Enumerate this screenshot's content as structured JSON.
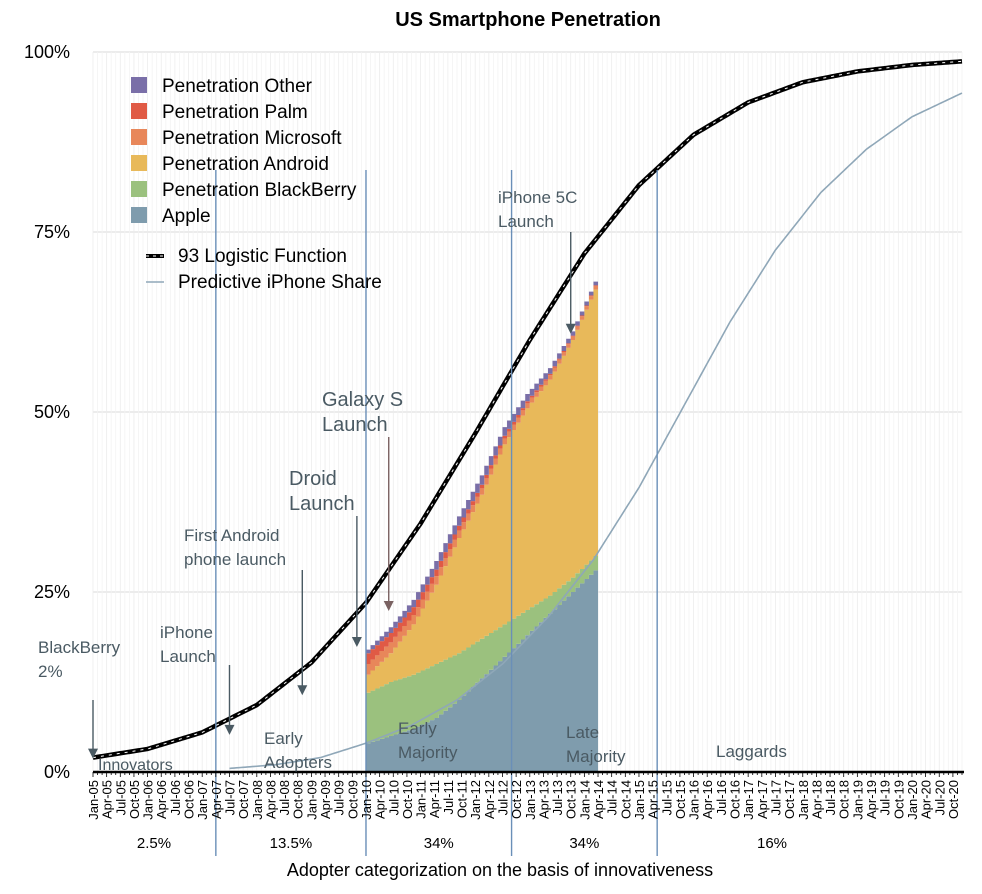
{
  "chart_data": {
    "type": "area",
    "title": "US Smartphone Penetration",
    "xlabel": "Adopter categorization on the basis of innovativeness",
    "ylabel": "",
    "ylim": [
      0,
      100
    ],
    "y_ticks": [
      "0%",
      "25%",
      "50%",
      "75%",
      "100%"
    ],
    "x_tick_labels": [
      "Jan-05",
      "Apr-05",
      "Jul-05",
      "Oct-05",
      "Jan-06",
      "Apr-06",
      "Jul-06",
      "Oct-06",
      "Jan-07",
      "Apr-07",
      "Jul-07",
      "Oct-07",
      "Jan-08",
      "Apr-08",
      "Jul-08",
      "Oct-08",
      "Jan-09",
      "Apr-09",
      "Jul-09",
      "Oct-09",
      "Jan-10",
      "Apr-10",
      "Jul-10",
      "Oct-10",
      "Jan-11",
      "Apr-11",
      "Jul-11",
      "Oct-11",
      "Jan-12",
      "Apr-12",
      "Jul-12",
      "Oct-12",
      "Jan-13",
      "Apr-13",
      "Jul-13",
      "Oct-13",
      "Jan-14",
      "Apr-14",
      "Jul-14",
      "Oct-14",
      "Jan-15",
      "Apr-15",
      "Jul-15",
      "Oct-15",
      "Jan-16",
      "Apr-16",
      "Jul-16",
      "Oct-16",
      "Jan-17",
      "Apr-17",
      "Jul-17",
      "Oct-17",
      "Jan-18",
      "Apr-18",
      "Jul-18",
      "Oct-18",
      "Jan-19",
      "Apr-19",
      "Jul-19",
      "Oct-19",
      "Jan-20",
      "Apr-20",
      "Jul-20",
      "Oct-20"
    ],
    "x_range_months": [
      0,
      191
    ],
    "area_x_months": [
      60,
      65,
      70,
      75,
      80,
      85,
      90,
      95,
      100,
      105,
      110
    ],
    "series": [
      {
        "name": "Apple",
        "color": "#7f9cad",
        "values": [
          4,
          5,
          6,
          7.5,
          10,
          13,
          16,
          19,
          22,
          25,
          28
        ]
      },
      {
        "name": "Penetration BlackBerry",
        "color": "#9bc17e",
        "values": [
          7,
          7.5,
          7.5,
          7.5,
          6.5,
          5.5,
          4.5,
          3.5,
          2.5,
          2,
          2
        ]
      },
      {
        "name": "Penetration Android",
        "color": "#e8b95a",
        "values": [
          2.5,
          4,
          7,
          11,
          16,
          20,
          25,
          28,
          30,
          33,
          37
        ]
      },
      {
        "name": "Penetration Microsoft",
        "color": "#e8875a",
        "values": [
          1.5,
          1.5,
          1.3,
          1.2,
          1,
          0.9,
          0.8,
          0.7,
          0.6,
          0.5,
          0.5
        ]
      },
      {
        "name": "Penetration Palm",
        "color": "#e05a45",
        "values": [
          1.5,
          1.3,
          1.1,
          0.9,
          0.7,
          0.5,
          0.4,
          0.3,
          0.2,
          0.1,
          0.1
        ]
      },
      {
        "name": "Penetration Other",
        "color": "#7a6fa8",
        "values": [
          0.5,
          0.8,
          1,
          1.2,
          1.3,
          1.3,
          1.2,
          1,
          0.8,
          0.6,
          0.5
        ]
      }
    ],
    "legend_order": [
      "Penetration Other",
      "Penetration Palm",
      "Penetration Microsoft",
      "Penetration Android",
      "Penetration BlackBerry",
      "Apple"
    ],
    "curves": [
      {
        "name": "93 Logistic Function",
        "color": "#000000",
        "style": "dashed-thick",
        "x_months": [
          0,
          12,
          24,
          36,
          48,
          60,
          72,
          84,
          96,
          108,
          120,
          132,
          144,
          156,
          168,
          180,
          191
        ],
        "values": [
          2,
          3.2,
          5.5,
          9.3,
          15.2,
          23.5,
          34.5,
          47,
          60,
          72,
          81.5,
          88.5,
          93,
          95.8,
          97.3,
          98.2,
          98.7
        ]
      },
      {
        "name": "Predictive iPhone Share",
        "color": "#8fa7b8",
        "style": "thin",
        "x_months": [
          30,
          40,
          50,
          60,
          70,
          80,
          90,
          100,
          110,
          120,
          130,
          140,
          150,
          160,
          170,
          180,
          191
        ],
        "values": [
          0.5,
          1,
          2,
          4,
          6.5,
          10,
          15,
          21.5,
          29.5,
          39.5,
          51,
          62.5,
          72.5,
          80.5,
          86.5,
          91,
          94.3
        ]
      }
    ],
    "annotations": [
      {
        "name": "annotation-blackberry",
        "lines": [
          "BlackBerry",
          "2%"
        ],
        "arrow_x_month": 0,
        "arrow_tip_y": 2
      },
      {
        "name": "annotation-iphone-launch",
        "lines": [
          "iPhone",
          "Launch"
        ],
        "arrow_x_month": 30,
        "arrow_tip_y": 5.3
      },
      {
        "name": "annotation-first-android",
        "lines": [
          "First Android",
          "phone launch"
        ],
        "arrow_x_month": 46,
        "arrow_tip_y": 10.8
      },
      {
        "name": "annotation-droid-launch",
        "lines": [
          "Droid",
          "Launch"
        ],
        "arrow_x_month": 58,
        "arrow_tip_y": 17.5
      },
      {
        "name": "annotation-galaxy-s-launch",
        "lines": [
          "Galaxy S",
          "Launch"
        ],
        "arrow_x_month": 65,
        "arrow_tip_y": 22.5
      },
      {
        "name": "annotation-iphone-5c-launch",
        "lines": [
          "iPhone 5C",
          "Launch"
        ],
        "arrow_x_month": 105,
        "arrow_tip_y": 61
      }
    ],
    "adopter_categories": [
      {
        "name": "Innovators",
        "percent": "2.5%"
      },
      {
        "name": "Early Adopters",
        "percent": "13.5%"
      },
      {
        "name": "Early Majority",
        "percent": "34%"
      },
      {
        "name": "Late Majority",
        "percent": "34%"
      },
      {
        "name": "Laggards",
        "percent": "16%"
      }
    ],
    "adopter_boundaries_months": [
      27,
      60,
      92,
      124
    ]
  }
}
